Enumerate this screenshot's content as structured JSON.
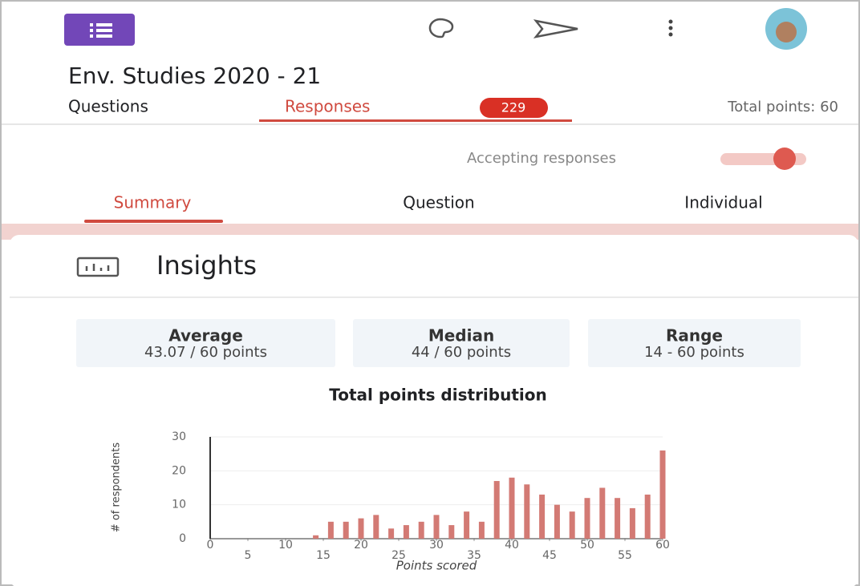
{
  "header": {
    "title": "Env. Studies 2020 - 21"
  },
  "tabs": {
    "questions": "Questions",
    "responses": "Responses",
    "response_count": "229",
    "total_points": "Total points: 60"
  },
  "accepting": "Accepting responses",
  "subtabs": [
    "Summary",
    "Question",
    "Individual"
  ],
  "insights": {
    "title": "Insights",
    "stats": [
      {
        "label": "Average",
        "value": "43.07 / 60 points"
      },
      {
        "label": "Median",
        "value": "44 / 60 points"
      },
      {
        "label": "Range",
        "value": "14 - 60 points"
      }
    ]
  },
  "chart_data": {
    "type": "bar",
    "title": "Total points distribution",
    "x_label": "Points scored",
    "y_label": "# of respondents",
    "x": [
      14,
      16,
      18,
      20,
      22,
      24,
      26,
      28,
      30,
      32,
      34,
      36,
      38,
      40,
      42,
      44,
      46,
      48,
      50,
      52,
      54,
      56,
      58,
      60
    ],
    "values": [
      1,
      5,
      5,
      6,
      7,
      3,
      4,
      5,
      7,
      4,
      8,
      5,
      17,
      18,
      16,
      13,
      10,
      8,
      12,
      15,
      12,
      9,
      13,
      26
    ],
    "color": "#d37a74",
    "xlim": [
      0,
      60
    ],
    "xticks": [
      0,
      5,
      10,
      15,
      20,
      25,
      30,
      35,
      40,
      45,
      50,
      55,
      60
    ],
    "ylim": [
      0,
      30
    ],
    "yticks": [
      0,
      10,
      20,
      30
    ],
    "grid": true
  }
}
